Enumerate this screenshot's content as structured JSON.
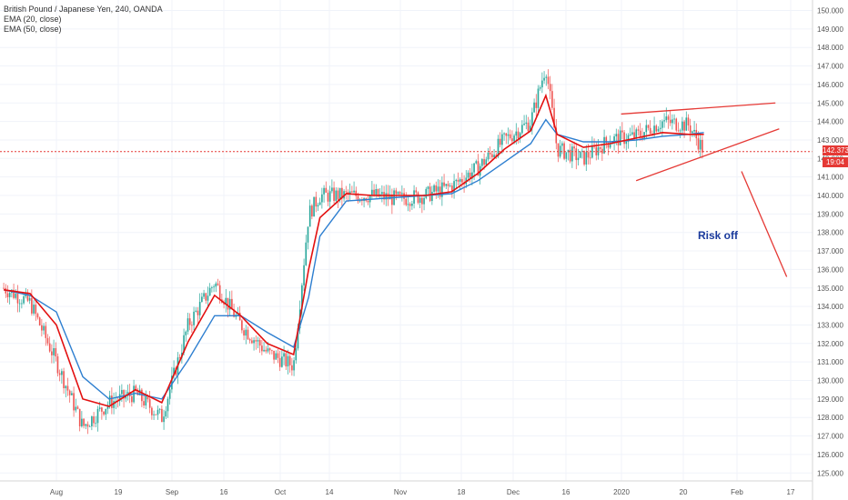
{
  "legend": {
    "title": "British Pound / Japanese Yen, 240, OANDA",
    "ema20": "EMA (20, close)",
    "ema50": "EMA (50, close)"
  },
  "annotation": {
    "text": "Risk off"
  },
  "price_tag": {
    "price": "142.373",
    "countdown": "19:04"
  },
  "colors": {
    "up": "#26a69a",
    "down": "#ef5350",
    "ema20": "#e31010",
    "ema50": "#2e7fd0",
    "drawing": "#e53935",
    "annotation": "#1a3a9c",
    "current_price_line": "#e53935"
  },
  "chart_data": {
    "type": "line",
    "title": "British Pound / Japanese Yen, 240, OANDA",
    "xlabel": "",
    "ylabel": "",
    "x_ticks": [
      "Aug",
      "19",
      "Sep",
      "16",
      "Oct",
      "14",
      "Nov",
      "18",
      "Dec",
      "16",
      "2020",
      "20",
      "Feb",
      "17"
    ],
    "y_ticks": [
      "125.000",
      "126.000",
      "127.000",
      "128.000",
      "129.000",
      "130.000",
      "131.000",
      "132.000",
      "133.000",
      "134.000",
      "135.000",
      "136.000",
      "137.000",
      "138.000",
      "139.000",
      "140.000",
      "141.000",
      "142.000",
      "143.000",
      "144.000",
      "145.000",
      "146.000",
      "147.000",
      "148.000",
      "149.000",
      "150.000"
    ],
    "ylim": [
      124.5,
      150.5
    ],
    "current_price": 142.373,
    "grid": true,
    "series": [
      {
        "name": "EMA (20, close)",
        "x": [
          "Jul 22",
          "Jul 29",
          "Aug 5",
          "Aug 12",
          "Aug 19",
          "Aug 26",
          "Sep 2",
          "Sep 9",
          "Sep 16",
          "Sep 23",
          "Sep 30",
          "Oct 7",
          "Oct 11",
          "Oct 14",
          "Oct 21",
          "Oct 28",
          "Nov 4",
          "Nov 11",
          "Nov 18",
          "Nov 25",
          "Dec 2",
          "Dec 9",
          "Dec 13",
          "Dec 16",
          "Dec 23",
          "Dec 30",
          "Jan 6",
          "Jan 13",
          "Jan 20",
          "Jan 24"
        ],
        "values": [
          134.9,
          134.7,
          133.0,
          129.0,
          128.6,
          129.5,
          128.8,
          132.1,
          134.6,
          133.5,
          132.0,
          131.4,
          136.0,
          138.8,
          140.1,
          140.0,
          140.0,
          140.0,
          140.2,
          141.2,
          142.5,
          143.5,
          145.4,
          143.3,
          142.6,
          142.8,
          143.1,
          143.4,
          143.3,
          143.3
        ]
      },
      {
        "name": "EMA (50, close)",
        "x": [
          "Jul 22",
          "Jul 29",
          "Aug 5",
          "Aug 12",
          "Aug 19",
          "Aug 26",
          "Sep 2",
          "Sep 9",
          "Sep 16",
          "Sep 23",
          "Sep 30",
          "Oct 7",
          "Oct 11",
          "Oct 14",
          "Oct 21",
          "Oct 28",
          "Nov 4",
          "Nov 11",
          "Nov 18",
          "Nov 25",
          "Dec 2",
          "Dec 9",
          "Dec 13",
          "Dec 16",
          "Dec 23",
          "Dec 30",
          "Jan 6",
          "Jan 13",
          "Jan 20",
          "Jan 24"
        ],
        "values": [
          134.9,
          134.6,
          133.7,
          130.2,
          129.0,
          129.3,
          129.0,
          131.1,
          133.5,
          133.5,
          132.6,
          131.8,
          134.5,
          137.8,
          139.7,
          139.8,
          139.9,
          140.0,
          140.1,
          140.8,
          141.8,
          142.8,
          144.1,
          143.3,
          142.9,
          142.9,
          143.0,
          143.2,
          143.3,
          143.4
        ]
      }
    ],
    "price_bars": {
      "x": [
        "Jul 22",
        "Jul 29",
        "Aug 5",
        "Aug 12",
        "Aug 19",
        "Aug 26",
        "Sep 2",
        "Sep 9",
        "Sep 16",
        "Sep 23",
        "Sep 30",
        "Oct 7",
        "Oct 11",
        "Oct 14",
        "Oct 21",
        "Oct 28",
        "Nov 4",
        "Nov 11",
        "Nov 18",
        "Nov 25",
        "Dec 2",
        "Dec 9",
        "Dec 13",
        "Dec 16",
        "Dec 23",
        "Dec 30",
        "Jan 6",
        "Jan 13",
        "Jan 20",
        "Jan 24"
      ],
      "values": [
        135.0,
        134.2,
        131.0,
        127.5,
        128.8,
        129.3,
        128.0,
        133.0,
        135.3,
        133.0,
        131.5,
        130.8,
        139.0,
        140.0,
        140.0,
        140.0,
        139.8,
        140.0,
        140.5,
        141.5,
        143.0,
        144.0,
        147.0,
        142.5,
        142.0,
        143.0,
        143.2,
        144.0,
        143.8,
        142.4
      ]
    },
    "drawings": [
      {
        "kind": "trendline",
        "from": [
          "Jan 2",
          144.4
        ],
        "to": [
          "Feb 12",
          145.0
        ]
      },
      {
        "kind": "trendline",
        "from": [
          "Jan 6",
          140.8
        ],
        "to": [
          "Feb 13",
          143.6
        ]
      },
      {
        "kind": "trendline",
        "from": [
          "Feb 3",
          141.3
        ],
        "to": [
          "Feb 15",
          135.6
        ]
      }
    ]
  }
}
